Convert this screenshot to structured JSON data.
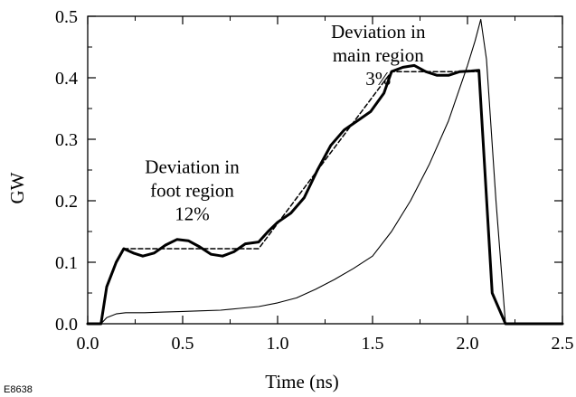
{
  "figure_id": "E8638",
  "chart_data": {
    "type": "line",
    "xlabel": "Time (ns)",
    "ylabel": "GW",
    "xlim": [
      0.0,
      2.5
    ],
    "ylim": [
      0.0,
      0.5
    ],
    "x_ticks": [
      "0.0",
      "0.5",
      "1.0",
      "1.5",
      "2.0",
      "2.5"
    ],
    "y_ticks": [
      "0.0",
      "0.1",
      "0.2",
      "0.3",
      "0.4",
      "0.5"
    ],
    "grid": false,
    "series": [
      {
        "style": "thick-solid",
        "x": [
          0.0,
          0.07,
          0.1,
          0.15,
          0.19,
          0.24,
          0.29,
          0.35,
          0.41,
          0.47,
          0.53,
          0.59,
          0.65,
          0.71,
          0.77,
          0.83,
          0.9,
          0.95,
          1.0,
          1.07,
          1.14,
          1.21,
          1.28,
          1.35,
          1.42,
          1.49,
          1.56,
          1.6,
          1.66,
          1.72,
          1.78,
          1.84,
          1.9,
          1.96,
          2.02,
          2.06,
          2.13,
          2.2,
          2.5
        ],
        "y": [
          0.0,
          0.0,
          0.06,
          0.1,
          0.122,
          0.115,
          0.11,
          0.115,
          0.128,
          0.137,
          0.135,
          0.125,
          0.113,
          0.11,
          0.117,
          0.13,
          0.133,
          0.15,
          0.165,
          0.18,
          0.205,
          0.25,
          0.29,
          0.315,
          0.33,
          0.345,
          0.375,
          0.41,
          0.417,
          0.42,
          0.41,
          0.404,
          0.404,
          0.41,
          0.411,
          0.412,
          0.05,
          0.0,
          0.0
        ]
      },
      {
        "style": "dashed",
        "x": [
          0.19,
          0.9,
          1.6,
          2.05
        ],
        "y": [
          0.122,
          0.122,
          0.41,
          0.41
        ]
      },
      {
        "style": "thin-solid",
        "x": [
          0.0,
          0.07,
          0.1,
          0.15,
          0.2,
          0.3,
          0.4,
          0.5,
          0.6,
          0.7,
          0.8,
          0.9,
          1.0,
          1.1,
          1.2,
          1.3,
          1.4,
          1.5,
          1.6,
          1.7,
          1.8,
          1.9,
          2.0,
          2.04,
          2.07,
          2.1,
          2.15,
          2.2,
          2.5
        ],
        "y": [
          0.0,
          0.0,
          0.01,
          0.016,
          0.018,
          0.018,
          0.019,
          0.02,
          0.021,
          0.022,
          0.025,
          0.028,
          0.034,
          0.042,
          0.056,
          0.072,
          0.09,
          0.11,
          0.15,
          0.2,
          0.26,
          0.33,
          0.42,
          0.46,
          0.495,
          0.43,
          0.2,
          0.0,
          0.0
        ]
      }
    ],
    "annotations": [
      {
        "lines": [
          "Deviation in",
          "main region",
          "3%"
        ],
        "x": 1.53,
        "y": 0.465
      },
      {
        "lines": [
          "Deviation in",
          "foot region",
          "12%"
        ],
        "x": 0.55,
        "y": 0.245
      }
    ]
  }
}
